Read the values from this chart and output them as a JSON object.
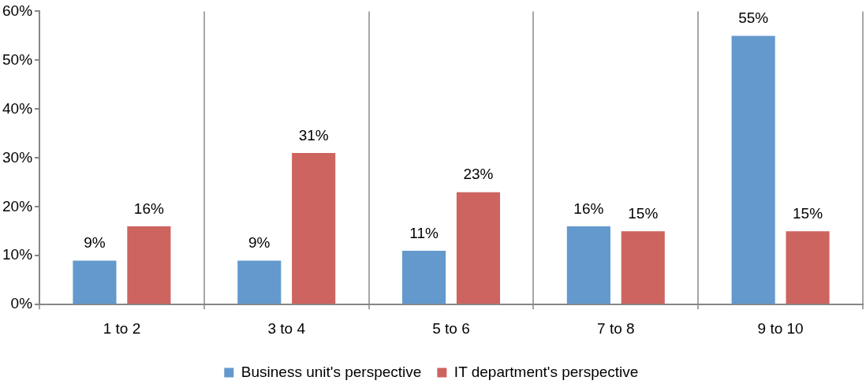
{
  "chart_data": {
    "type": "bar",
    "categories": [
      "1 to 2",
      "3 to 4",
      "5 to 6",
      "7 to 8",
      "9 to 10"
    ],
    "series": [
      {
        "name": "Business unit's perspective",
        "color": "#6399cd",
        "values": [
          9,
          9,
          11,
          16,
          55
        ],
        "value_labels": [
          "9%",
          "9%",
          "11%",
          "16%",
          "55%"
        ]
      },
      {
        "name": "IT department's perspective",
        "color": "#cd645f",
        "values": [
          16,
          31,
          23,
          15,
          15
        ],
        "value_labels": [
          "16%",
          "31%",
          "23%",
          "15%",
          "15%"
        ]
      }
    ],
    "ylim": [
      0,
      60
    ],
    "yticks": [
      {
        "value": 0,
        "label": "0%"
      },
      {
        "value": 10,
        "label": "10%"
      },
      {
        "value": 20,
        "label": "20%"
      },
      {
        "value": 30,
        "label": "30%"
      },
      {
        "value": 40,
        "label": "40%"
      },
      {
        "value": 50,
        "label": "50%"
      },
      {
        "value": 60,
        "label": "60%"
      }
    ],
    "grid": "x",
    "legend": "bottom"
  }
}
